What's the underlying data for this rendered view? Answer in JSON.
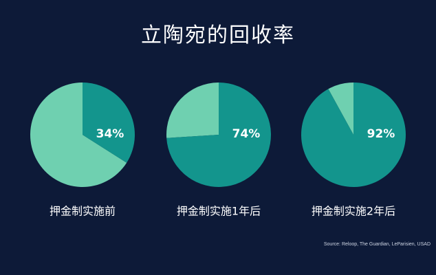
{
  "title": "立陶宛的回收率",
  "source": "Source: Reloop, The Guardian, LeParisien, USAD",
  "colors": {
    "background": "#0d1a38",
    "recycled": "#13958d",
    "not_recycled": "#6fd0b0",
    "text": "#ffffff"
  },
  "chart_data": [
    {
      "type": "pie",
      "category": "押金制实施前",
      "value": 34,
      "label": "34%"
    },
    {
      "type": "pie",
      "category": "押金制实施1年后",
      "value": 74,
      "label": "74%"
    },
    {
      "type": "pie",
      "category": "押金制实施2年后",
      "value": 92,
      "label": "92%"
    }
  ]
}
